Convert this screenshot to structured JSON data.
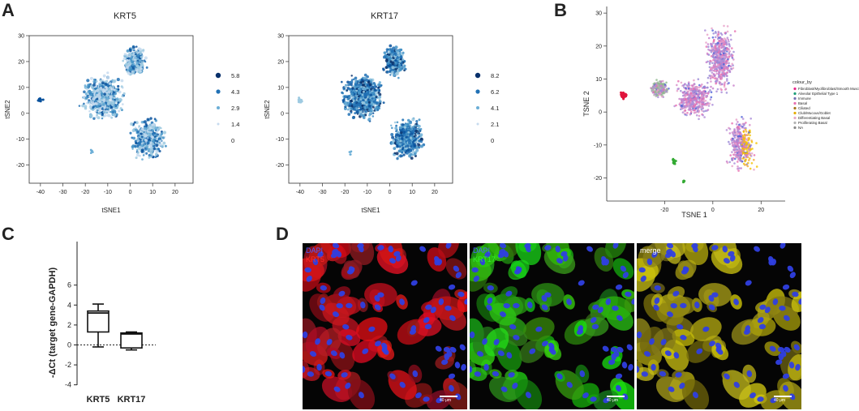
{
  "panels": {
    "a": "A",
    "b": "B",
    "c": "C",
    "d": "D"
  },
  "panel_a": {
    "krt5": {
      "title": "KRT5",
      "xlabel": "tSNE1",
      "ylabel": "tSNE2",
      "legend": [
        "5.8",
        "4.3",
        "2.9",
        "1.4",
        "0"
      ]
    },
    "krt17": {
      "title": "KRT17",
      "xlabel": "tSNE1",
      "ylabel": "tSNE2",
      "legend": [
        "8.2",
        "6.2",
        "4.1",
        "2.1",
        "0"
      ]
    },
    "xticks": [
      "-40",
      "-30",
      "-20",
      "-10",
      "0",
      "10",
      "20"
    ],
    "yticks": [
      "30",
      "20",
      "10",
      "0",
      "-10",
      "-20"
    ]
  },
  "panel_b": {
    "xlabel": "TSNE 1",
    "ylabel": "TSNE 2",
    "xticks": [
      "-20",
      "0",
      "20"
    ],
    "yticks": [
      "30",
      "20",
      "10",
      "0",
      "-10",
      "-20"
    ],
    "legend_title": "colour_by",
    "legend": [
      {
        "label": "Fibroblast/Myofibroblast/Smooth Muscle",
        "color": "#e7298a"
      },
      {
        "label": "Alveolar Epithelial Type 1",
        "color": "#1b9e77"
      },
      {
        "label": "Immune",
        "color": "#7570b3"
      },
      {
        "label": "Basal",
        "color": "#e76fb0"
      },
      {
        "label": "Ciliated",
        "color": "#a6761d"
      },
      {
        "label": "Club/Mucous/Goblet",
        "color": "#e6ab02"
      },
      {
        "label": "Differentiating Basal",
        "color": "#e6a8c8"
      },
      {
        "label": "Proliferating Basal",
        "color": "#b3b3b3"
      },
      {
        "label": "NA",
        "color": "#888888"
      }
    ]
  },
  "panel_c": {
    "ylabel": "-ΔCt (target gene-GAPDH)",
    "yticks": [
      "6",
      "4",
      "2",
      "0",
      "-2",
      "-4"
    ]
  },
  "panel_d": {
    "img1": {
      "line1": "DAPI",
      "line2": "KRT5",
      "line2_color": "#ff2a2a"
    },
    "img2": {
      "line1": "DAPI",
      "line2": "KRT17",
      "line2_color": "#33ee33"
    },
    "img3": {
      "line1": "merge"
    },
    "scalebar": "40 μm"
  },
  "chart_data": [
    {
      "type": "box",
      "panel": "C",
      "categories": [
        "KRT5",
        "KRT17"
      ],
      "boxes": [
        {
          "name": "KRT5",
          "min": -0.2,
          "q1": 1.3,
          "median": 3.2,
          "q3": 3.4,
          "max": 4.1
        },
        {
          "name": "KRT17",
          "min": -0.5,
          "q1": -0.3,
          "median": 1.1,
          "q3": 1.2,
          "max": 1.3
        }
      ],
      "ylabel": "-ΔCt (target gene-GAPDH)",
      "ylim": [
        -4,
        6
      ],
      "reference_line": 0
    }
  ]
}
